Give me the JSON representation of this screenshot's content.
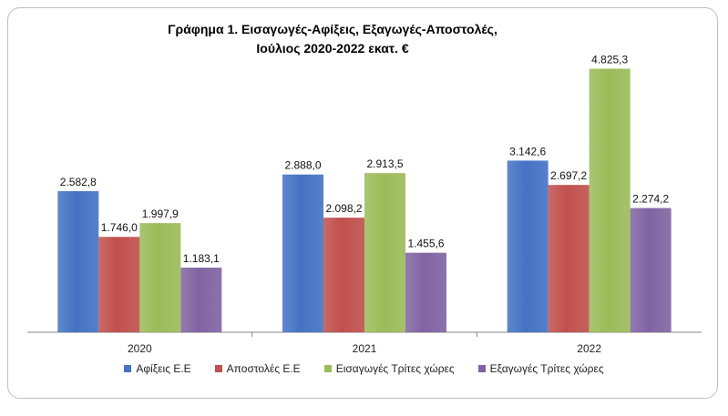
{
  "chart_data": {
    "type": "bar",
    "title_line1": "Γράφημα 1. Εισαγωγές-Αφίξεις, Εξαγωγές-Αποστολές,",
    "title_line2": "Ιούλιος 2020-2022 εκατ. €",
    "categories": [
      "2020",
      "2021",
      "2022"
    ],
    "series": [
      {
        "name": "Αφίξεις Ε.Ε",
        "color": "#4472c4",
        "values": [
          2582.8,
          2888.0,
          3142.6
        ],
        "labels": [
          "2.582,8",
          "2.888,0",
          "3.142,6"
        ]
      },
      {
        "name": "Αποστολές  Ε.Ε",
        "color": "#c0504d",
        "values": [
          1746.0,
          2098.2,
          2697.2
        ],
        "labels": [
          "1.746,0",
          "2.098,2",
          "2.697,2"
        ]
      },
      {
        "name": "Εισαγωγές Τρίτες χώρες",
        "color": "#9bbb59",
        "values": [
          1997.9,
          2913.5,
          4825.3
        ],
        "labels": [
          "1.997,9",
          "2.913,5",
          "4.825,3"
        ]
      },
      {
        "name": "Εξαγωγές Τρίτες χώρες",
        "color": "#8064a2",
        "values": [
          1183.1,
          1455.6,
          2274.2
        ],
        "labels": [
          "1.183,1",
          "1.455,6",
          "2.274,2"
        ]
      }
    ],
    "ylim": [
      0,
      5000
    ],
    "grid": false,
    "legend_position": "bottom"
  }
}
